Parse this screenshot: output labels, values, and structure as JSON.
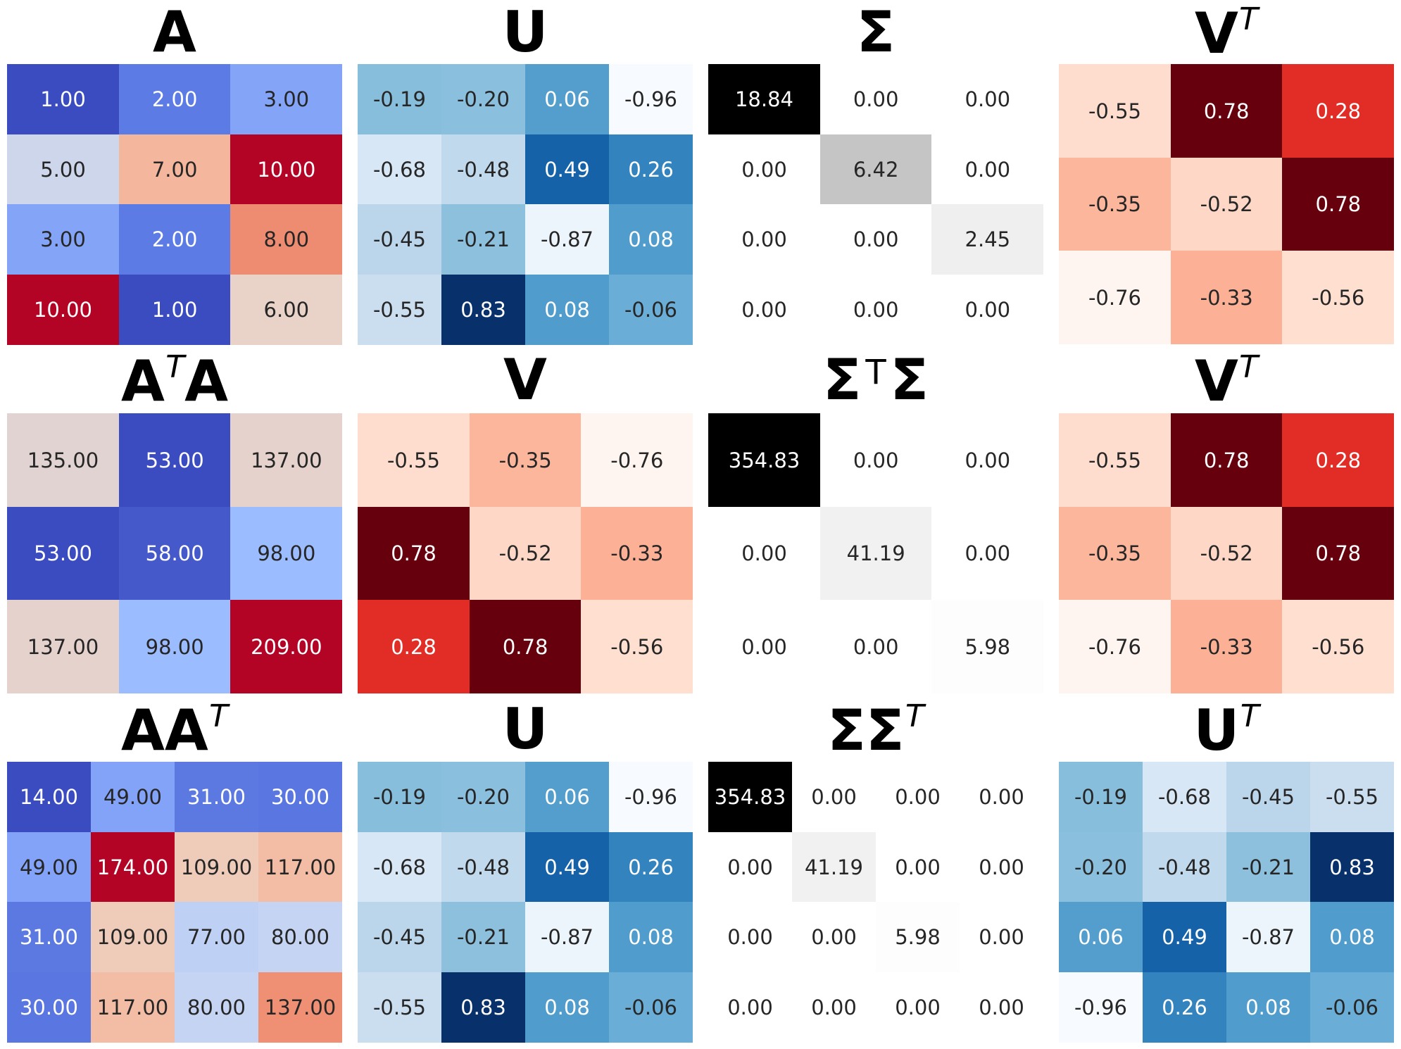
{
  "chart_data": [
    {
      "type": "heatmap",
      "title": "A",
      "cmap": "coolwarm",
      "values": [
        [
          1,
          2,
          3
        ],
        [
          5,
          7,
          10
        ],
        [
          3,
          2,
          8
        ],
        [
          10,
          1,
          6
        ]
      ],
      "labels": [
        [
          "1.00",
          "2.00",
          "3.00"
        ],
        [
          "5.00",
          "7.00",
          "10.00"
        ],
        [
          "3.00",
          "2.00",
          "8.00"
        ],
        [
          "10.00",
          "1.00",
          "6.00"
        ]
      ]
    },
    {
      "type": "heatmap",
      "title": "U",
      "cmap": "Blues",
      "values": [
        [
          -0.19,
          -0.2,
          0.06,
          -0.96
        ],
        [
          -0.68,
          -0.48,
          0.49,
          0.26
        ],
        [
          -0.45,
          -0.21,
          -0.87,
          0.08
        ],
        [
          -0.55,
          0.83,
          0.08,
          -0.06
        ]
      ],
      "labels": [
        [
          "-0.19",
          "-0.20",
          "0.06",
          "-0.96"
        ],
        [
          "-0.68",
          "-0.48",
          "0.49",
          "0.26"
        ],
        [
          "-0.45",
          "-0.21",
          "-0.87",
          "0.08"
        ],
        [
          "-0.55",
          "0.83",
          "0.08",
          "-0.06"
        ]
      ]
    },
    {
      "type": "heatmap",
      "title": "Σ",
      "cmap": "Greys",
      "values": [
        [
          18.84,
          0,
          0
        ],
        [
          0,
          6.42,
          0
        ],
        [
          0,
          0,
          2.45
        ],
        [
          0,
          0,
          0
        ]
      ],
      "labels": [
        [
          "18.84",
          "0.00",
          "0.00"
        ],
        [
          "0.00",
          "6.42",
          "0.00"
        ],
        [
          "0.00",
          "0.00",
          "2.45"
        ],
        [
          "0.00",
          "0.00",
          "0.00"
        ]
      ]
    },
    {
      "type": "heatmap",
      "title": "V",
      "title_sup": "T",
      "cmap": "Reds",
      "values": [
        [
          -0.55,
          0.78,
          0.28
        ],
        [
          -0.35,
          -0.52,
          0.78
        ],
        [
          -0.76,
          -0.33,
          -0.56
        ]
      ],
      "labels": [
        [
          "-0.55",
          "0.78",
          "0.28"
        ],
        [
          "-0.35",
          "-0.52",
          "0.78"
        ],
        [
          "-0.76",
          "-0.33",
          "-0.56"
        ]
      ]
    },
    {
      "type": "heatmap",
      "title": "A",
      "title_sup": "T",
      "title_after": "A",
      "cmap": "coolwarm",
      "values": [
        [
          135,
          53,
          137
        ],
        [
          53,
          58,
          98
        ],
        [
          137,
          98,
          209
        ]
      ],
      "labels": [
        [
          "135.00",
          "53.00",
          "137.00"
        ],
        [
          "53.00",
          "58.00",
          "98.00"
        ],
        [
          "137.00",
          "98.00",
          "209.00"
        ]
      ]
    },
    {
      "type": "heatmap",
      "title": "V",
      "cmap": "Reds",
      "values": [
        [
          -0.55,
          -0.35,
          -0.76
        ],
        [
          0.78,
          -0.52,
          -0.33
        ],
        [
          0.28,
          0.78,
          -0.56
        ]
      ],
      "labels": [
        [
          "-0.55",
          "-0.35",
          "-0.76"
        ],
        [
          "0.78",
          "-0.52",
          "-0.33"
        ],
        [
          "0.28",
          "0.78",
          "-0.56"
        ]
      ]
    },
    {
      "type": "heatmap",
      "title": "Σ",
      "title_mid": "T",
      "title_after": "Σ",
      "cmap": "Greys",
      "values": [
        [
          354.83,
          0,
          0
        ],
        [
          0,
          41.19,
          0
        ],
        [
          0,
          0,
          5.98
        ]
      ],
      "labels": [
        [
          "354.83",
          "0.00",
          "0.00"
        ],
        [
          "0.00",
          "41.19",
          "0.00"
        ],
        [
          "0.00",
          "0.00",
          "5.98"
        ]
      ]
    },
    {
      "type": "heatmap",
      "title": "V",
      "title_sup": "T",
      "cmap": "Reds",
      "values": [
        [
          -0.55,
          0.78,
          0.28
        ],
        [
          -0.35,
          -0.52,
          0.78
        ],
        [
          -0.76,
          -0.33,
          -0.56
        ]
      ],
      "labels": [
        [
          "-0.55",
          "0.78",
          "0.28"
        ],
        [
          "-0.35",
          "-0.52",
          "0.78"
        ],
        [
          "-0.76",
          "-0.33",
          "-0.56"
        ]
      ]
    },
    {
      "type": "heatmap",
      "title": "AA",
      "title_sup": "T",
      "cmap": "coolwarm",
      "values": [
        [
          14,
          49,
          31,
          30
        ],
        [
          49,
          174,
          109,
          117
        ],
        [
          31,
          109,
          77,
          80
        ],
        [
          30,
          117,
          80,
          137
        ]
      ],
      "labels": [
        [
          "14.00",
          "49.00",
          "31.00",
          "30.00"
        ],
        [
          "49.00",
          "174.00",
          "109.00",
          "117.00"
        ],
        [
          "31.00",
          "109.00",
          "77.00",
          "80.00"
        ],
        [
          "30.00",
          "117.00",
          "80.00",
          "137.00"
        ]
      ]
    },
    {
      "type": "heatmap",
      "title": "U",
      "cmap": "Blues",
      "values": [
        [
          -0.19,
          -0.2,
          0.06,
          -0.96
        ],
        [
          -0.68,
          -0.48,
          0.49,
          0.26
        ],
        [
          -0.45,
          -0.21,
          -0.87,
          0.08
        ],
        [
          -0.55,
          0.83,
          0.08,
          -0.06
        ]
      ],
      "labels": [
        [
          "-0.19",
          "-0.20",
          "0.06",
          "-0.96"
        ],
        [
          "-0.68",
          "-0.48",
          "0.49",
          "0.26"
        ],
        [
          "-0.45",
          "-0.21",
          "-0.87",
          "0.08"
        ],
        [
          "-0.55",
          "0.83",
          "0.08",
          "-0.06"
        ]
      ]
    },
    {
      "type": "heatmap",
      "title": "ΣΣ",
      "title_sup": "T",
      "cmap": "Greys",
      "values": [
        [
          354.83,
          0,
          0,
          0
        ],
        [
          0,
          41.19,
          0,
          0
        ],
        [
          0,
          0,
          5.98,
          0
        ],
        [
          0,
          0,
          0,
          0
        ]
      ],
      "labels": [
        [
          "354.83",
          "0.00",
          "0.00",
          "0.00"
        ],
        [
          "0.00",
          "41.19",
          "0.00",
          "0.00"
        ],
        [
          "0.00",
          "0.00",
          "5.98",
          "0.00"
        ],
        [
          "0.00",
          "0.00",
          "0.00",
          "0.00"
        ]
      ]
    },
    {
      "type": "heatmap",
      "title": "U",
      "title_sup": "T",
      "cmap": "Blues",
      "values": [
        [
          -0.19,
          -0.68,
          -0.45,
          -0.55
        ],
        [
          -0.2,
          -0.48,
          -0.21,
          0.83
        ],
        [
          0.06,
          0.49,
          -0.87,
          0.08
        ],
        [
          -0.96,
          0.26,
          0.08,
          -0.06
        ]
      ],
      "labels": [
        [
          "-0.19",
          "-0.68",
          "-0.45",
          "-0.55"
        ],
        [
          "-0.20",
          "-0.48",
          "-0.21",
          "0.83"
        ],
        [
          "0.06",
          "0.49",
          "-0.87",
          "0.08"
        ],
        [
          "-0.96",
          "0.26",
          "0.08",
          "-0.06"
        ]
      ]
    }
  ],
  "colormaps": {
    "coolwarm": [
      "#3b4cc0",
      "#6788ee",
      "#9abbff",
      "#c9d7f0",
      "#edd1c2",
      "#f7a889",
      "#e26952",
      "#b40426"
    ],
    "Blues": [
      "#f7fbff",
      "#deebf7",
      "#c6dbef",
      "#9ecae1",
      "#6baed6",
      "#4292c6",
      "#2171b5",
      "#08519c",
      "#08306b"
    ],
    "Reds": [
      "#fff5f0",
      "#fee0d2",
      "#fcbba1",
      "#fc9272",
      "#fb6a4a",
      "#ef3b2c",
      "#cb181d",
      "#a50f15",
      "#67000d"
    ],
    "Greys": [
      "#ffffff",
      "#f0f0f0",
      "#d9d9d9",
      "#bdbdbd",
      "#969696",
      "#737373",
      "#525252",
      "#252525",
      "#000000"
    ]
  }
}
